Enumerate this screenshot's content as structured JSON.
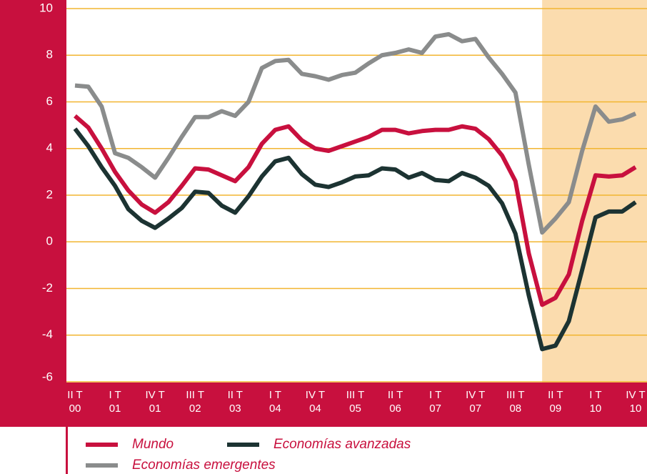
{
  "chart_data": {
    "type": "line",
    "categories": [
      "II T 00",
      null,
      null,
      "I T 01",
      null,
      null,
      "IV T 01",
      null,
      null,
      "III T 02",
      null,
      null,
      "II T 03",
      null,
      null,
      "I T 04",
      null,
      null,
      "IV T 04",
      null,
      null,
      "III T 05",
      null,
      null,
      "II T 06",
      null,
      null,
      "I T 07",
      null,
      null,
      "IV T 07",
      null,
      null,
      "III T 08",
      null,
      null,
      "II T 09",
      null,
      null,
      "I T 10",
      null,
      null,
      "IV T 10"
    ],
    "series": [
      {
        "name": "Mundo",
        "color": "#c8103e",
        "values": [
          5.4,
          4.9,
          4.0,
          3.0,
          2.2,
          1.6,
          1.25,
          1.7,
          2.4,
          3.15,
          3.1,
          2.85,
          2.6,
          3.2,
          4.2,
          4.8,
          4.95,
          4.35,
          4.0,
          3.9,
          4.1,
          4.3,
          4.5,
          4.8,
          4.8,
          4.65,
          4.75,
          4.8,
          4.8,
          4.95,
          4.85,
          4.4,
          3.7,
          2.6,
          -0.5,
          -2.7,
          -2.4,
          -1.4,
          0.9,
          2.85,
          2.8,
          2.85,
          3.2
        ]
      },
      {
        "name": "Economías avanzadas",
        "color": "#1c3332",
        "values": [
          4.85,
          4.1,
          3.2,
          2.4,
          1.4,
          0.9,
          0.6,
          1.0,
          1.45,
          2.15,
          2.1,
          1.55,
          1.25,
          1.95,
          2.8,
          3.45,
          3.6,
          2.9,
          2.45,
          2.35,
          2.55,
          2.8,
          2.85,
          3.15,
          3.1,
          2.75,
          2.95,
          2.65,
          2.6,
          2.95,
          2.75,
          2.4,
          1.65,
          0.35,
          -2.3,
          -4.6,
          -4.45,
          -3.4,
          -1.2,
          1.05,
          1.3,
          1.3,
          1.7
        ]
      },
      {
        "name": "Economías emergentes",
        "color": "#8a8c8c",
        "values": [
          6.7,
          6.65,
          5.8,
          3.8,
          3.6,
          3.2,
          2.75,
          3.6,
          4.5,
          5.35,
          5.35,
          5.6,
          5.4,
          6.0,
          7.45,
          7.75,
          7.8,
          7.2,
          7.1,
          6.95,
          7.15,
          7.25,
          7.65,
          8.0,
          8.1,
          8.25,
          8.1,
          8.8,
          8.9,
          8.6,
          8.7,
          7.9,
          7.2,
          6.4,
          3.3,
          0.4,
          1.0,
          1.7,
          3.9,
          5.8,
          5.15,
          5.25,
          5.5
        ]
      }
    ],
    "ylim": [
      -6,
      10
    ],
    "yticks": [
      -6,
      -4,
      -2,
      0,
      2,
      4,
      6,
      8,
      10
    ],
    "grid": true,
    "grid_color": "#f2b530",
    "shade_start": 35,
    "shade_color": "#fbdcae"
  }
}
